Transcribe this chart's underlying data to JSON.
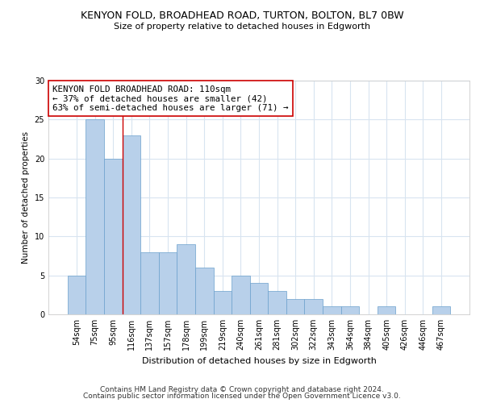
{
  "title1": "KENYON FOLD, BROADHEAD ROAD, TURTON, BOLTON, BL7 0BW",
  "title2": "Size of property relative to detached houses in Edgworth",
  "xlabel": "Distribution of detached houses by size in Edgworth",
  "ylabel": "Number of detached properties",
  "categories": [
    "54sqm",
    "75sqm",
    "95sqm",
    "116sqm",
    "137sqm",
    "157sqm",
    "178sqm",
    "199sqm",
    "219sqm",
    "240sqm",
    "261sqm",
    "281sqm",
    "302sqm",
    "322sqm",
    "343sqm",
    "364sqm",
    "384sqm",
    "405sqm",
    "426sqm",
    "446sqm",
    "467sqm"
  ],
  "values": [
    5,
    25,
    20,
    23,
    8,
    8,
    9,
    6,
    3,
    5,
    4,
    3,
    2,
    2,
    1,
    1,
    0,
    1,
    0,
    0,
    1
  ],
  "bar_color": "#b8d0ea",
  "bar_edge_color": "#6aa0cc",
  "grid_color": "#d8e4f0",
  "vline_color": "#cc0000",
  "annotation_text": "KENYON FOLD BROADHEAD ROAD: 110sqm\n← 37% of detached houses are smaller (42)\n63% of semi-detached houses are larger (71) →",
  "annotation_box_color": "#ffffff",
  "annotation_box_edge": "#cc0000",
  "ylim": [
    0,
    30
  ],
  "yticks": [
    0,
    5,
    10,
    15,
    20,
    25,
    30
  ],
  "footer1": "Contains HM Land Registry data © Crown copyright and database right 2024.",
  "footer2": "Contains public sector information licensed under the Open Government Licence v3.0."
}
